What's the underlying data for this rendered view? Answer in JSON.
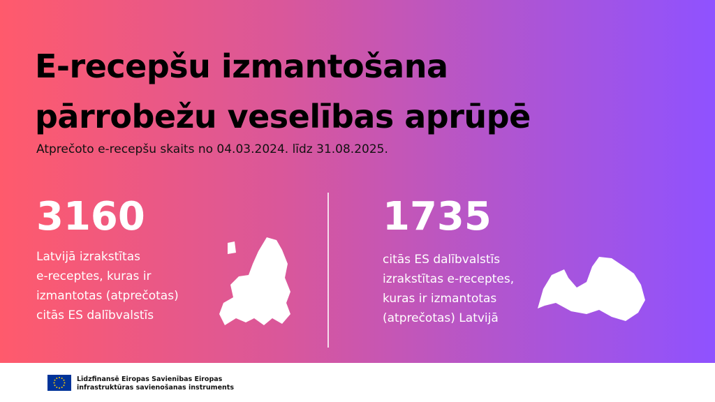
{
  "header": {
    "title": [
      "E-recepšu izmantošana",
      "pārrobežu veselības aprūpē"
    ],
    "subtitle": "Atprečoto e-recepšu skaits no 04.03.2024. līdz 31.08.2025."
  },
  "stats": [
    {
      "value": 3160,
      "description": [
        "Latvijā izrakstītas",
        "e-receptes, kuras ir",
        "izmantotas (atprečotas)",
        "citās ES dalībvalstīs"
      ]
    },
    {
      "value": 1735,
      "description": [
        "citās ES dalībvalstīs",
        "izrakstītas e-receptes,",
        "kuras ir izmantotas",
        "(atprečotas) Latvijā"
      ]
    }
  ],
  "footer": {
    "lines": [
      "Līdzfinansē Eiropas Savienības Eiropas",
      "infrastruktūras savienošanas instruments"
    ]
  }
}
